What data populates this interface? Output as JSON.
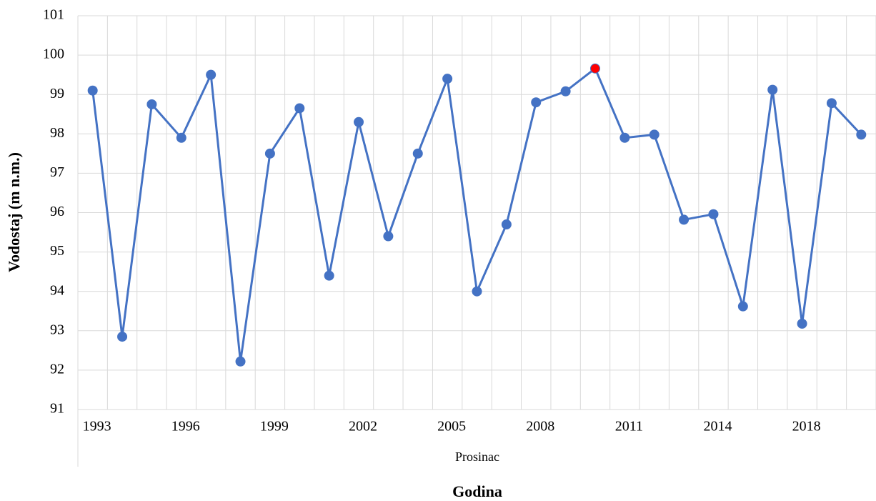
{
  "chart_data": {
    "type": "line",
    "y_label": "Vodostaj (m n.m.)",
    "x_group_label": "Prosinac",
    "x_label": "Godina",
    "categories": [
      "1993",
      null,
      null,
      "1996",
      null,
      null,
      "1999",
      null,
      null,
      "2002",
      null,
      null,
      "2005",
      null,
      null,
      "2008",
      null,
      null,
      "2011",
      null,
      null,
      "2014",
      null,
      null,
      "2018",
      null,
      null
    ],
    "series": [
      {
        "color": "#4472c4",
        "values": [
          99.1,
          92.85,
          98.75,
          97.9,
          99.5,
          92.22,
          97.5,
          98.65,
          94.4,
          98.3,
          95.4,
          97.5,
          99.4,
          94.0,
          95.7,
          98.8,
          99.08,
          99.66,
          97.9,
          97.98,
          95.82,
          95.96,
          93.62,
          99.12,
          93.18,
          98.78,
          97.98
        ],
        "marker_colors": [
          "#4472c4",
          "#4472c4",
          "#4472c4",
          "#4472c4",
          "#4472c4",
          "#4472c4",
          "#4472c4",
          "#4472c4",
          "#4472c4",
          "#4472c4",
          "#4472c4",
          "#4472c4",
          "#4472c4",
          "#4472c4",
          "#4472c4",
          "#4472c4",
          "#4472c4",
          "#ff0000",
          "#4472c4",
          "#4472c4",
          "#4472c4",
          "#4472c4",
          "#4472c4",
          "#4472c4",
          "#4472c4",
          "#4472c4",
          "#4472c4"
        ]
      }
    ],
    "ylim": [
      91,
      101
    ],
    "yticks": [
      91,
      92,
      93,
      94,
      95,
      96,
      97,
      98,
      99,
      100,
      101
    ],
    "grid": true
  }
}
